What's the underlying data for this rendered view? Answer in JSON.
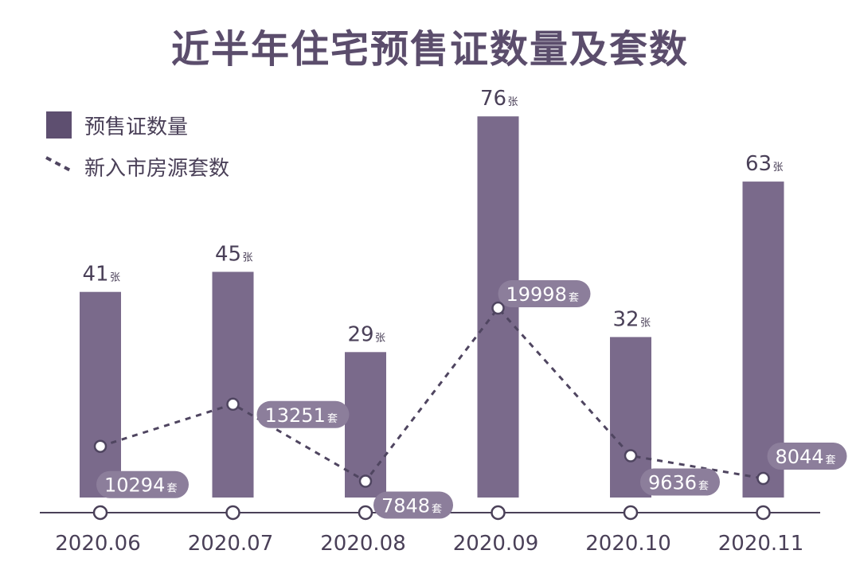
{
  "page": {
    "title": "近半年住宅预售证数量及套数"
  },
  "legend": {
    "bar_label": "预售证数量",
    "line_label": "新入市房源套数",
    "placement": "top-left"
  },
  "colors": {
    "bar": "#7a6a8b",
    "legend_bar": "#5e4f70",
    "line": "#4f4560",
    "pill": "#8c7e9b",
    "axis": "#4a4058",
    "title": "#5b4d6c"
  },
  "chart_data": {
    "type": "bar",
    "title": "近半年住宅预售证数量及套数",
    "categories": [
      "2020.06",
      "2020.07",
      "2020.08",
      "2020.09",
      "2020.10",
      "2020.11"
    ],
    "series": [
      {
        "name": "预售证数量",
        "type": "bar",
        "unit": "张",
        "values": [
          41,
          45,
          29,
          76,
          32,
          63
        ]
      },
      {
        "name": "新入市房源套数",
        "type": "line",
        "style": "dashed",
        "unit": "套",
        "values": [
          10294,
          13251,
          7848,
          19998,
          9636,
          8044
        ]
      }
    ],
    "xlabel": "",
    "ylabel": "",
    "grid": false
  }
}
